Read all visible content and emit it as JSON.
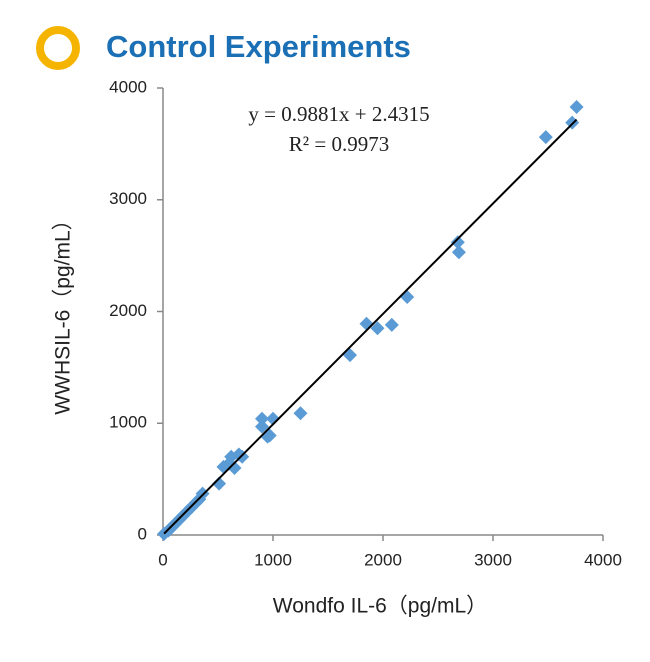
{
  "chart_data": {
    "type": "scatter",
    "title": "Control Experiments",
    "x_label": "Wondfo IL-6（pg/mL）",
    "y_label": "WWHSIL-6（pg/mL）",
    "annotations": [
      "y = 0.9881x + 2.4315",
      "R² = 0.9973"
    ],
    "trendline": {
      "slope": 0.9881,
      "intercept": 2.4315,
      "color": "#000000"
    },
    "series": [
      {
        "color": "#5b9bd5",
        "x": [
          10,
          50,
          80,
          110,
          150,
          180,
          220,
          260,
          300,
          330,
          360,
          510,
          550,
          600,
          620,
          650,
          690,
          720,
          900,
          900,
          950,
          970,
          1000,
          1250,
          1700,
          1850,
          1950,
          2080,
          2220,
          2680,
          2690,
          3480,
          3720,
          3760
        ],
        "values": [
          10,
          40,
          70,
          100,
          140,
          170,
          210,
          250,
          290,
          320,
          370,
          460,
          610,
          640,
          700,
          600,
          720,
          700,
          970,
          1040,
          880,
          890,
          1040,
          1090,
          1610,
          1890,
          1850,
          1880,
          2130,
          2620,
          2530,
          3560,
          3690,
          3830
        ]
      }
    ],
    "xlim": [
      0,
      4000
    ],
    "xticks": [
      0,
      1000,
      2000,
      3000,
      4000
    ],
    "ylim": [
      0,
      4000
    ],
    "yticks": [
      0,
      1000,
      2000,
      3000,
      4000
    ],
    "grid": false
  }
}
